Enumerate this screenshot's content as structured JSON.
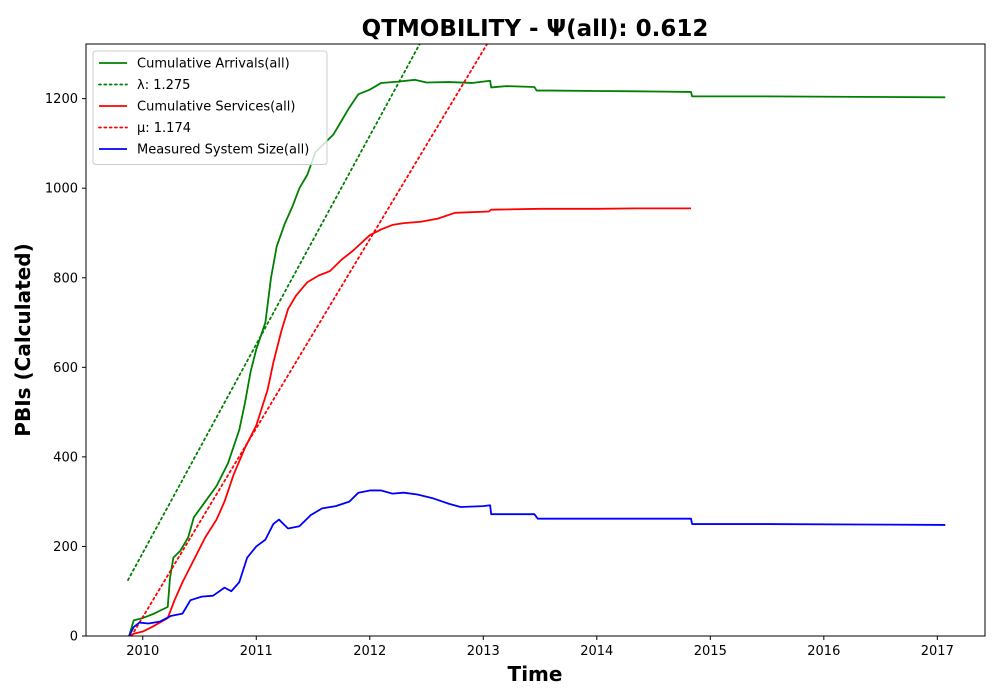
{
  "chart_data": {
    "type": "line",
    "title": "QTMOBILITY -  Ψ(all): 0.612",
    "xlabel": "Time",
    "ylabel": "PBIs (Calculated)",
    "xlim": [
      2009.5,
      2017.42
    ],
    "ylim": [
      0,
      1322
    ],
    "xticks": [
      2010,
      2011,
      2012,
      2013,
      2014,
      2015,
      2016,
      2017
    ],
    "yticks": [
      0,
      200,
      400,
      600,
      800,
      1000,
      1200
    ],
    "legend_position": "top-left",
    "grid": false,
    "series": [
      {
        "name": "Cumulative Arrivals(all)",
        "color": "#008000",
        "style": "solid",
        "points": [
          [
            2009.88,
            0
          ],
          [
            2009.92,
            35
          ],
          [
            2010.0,
            40
          ],
          [
            2010.1,
            50
          ],
          [
            2010.18,
            60
          ],
          [
            2010.22,
            65
          ],
          [
            2010.24,
            130
          ],
          [
            2010.27,
            175
          ],
          [
            2010.33,
            190
          ],
          [
            2010.4,
            220
          ],
          [
            2010.45,
            265
          ],
          [
            2010.55,
            300
          ],
          [
            2010.65,
            335
          ],
          [
            2010.75,
            385
          ],
          [
            2010.85,
            460
          ],
          [
            2010.9,
            520
          ],
          [
            2010.95,
            590
          ],
          [
            2011.0,
            640
          ],
          [
            2011.08,
            700
          ],
          [
            2011.13,
            800
          ],
          [
            2011.18,
            870
          ],
          [
            2011.25,
            920
          ],
          [
            2011.32,
            960
          ],
          [
            2011.38,
            1000
          ],
          [
            2011.45,
            1030
          ],
          [
            2011.52,
            1080
          ],
          [
            2011.6,
            1100
          ],
          [
            2011.68,
            1120
          ],
          [
            2011.75,
            1150
          ],
          [
            2011.82,
            1180
          ],
          [
            2011.9,
            1210
          ],
          [
            2012.0,
            1220
          ],
          [
            2012.1,
            1235
          ],
          [
            2012.25,
            1238
          ],
          [
            2012.4,
            1242
          ],
          [
            2012.5,
            1236
          ],
          [
            2012.7,
            1237
          ],
          [
            2012.9,
            1235
          ],
          [
            2013.06,
            1240
          ],
          [
            2013.07,
            1225
          ],
          [
            2013.2,
            1228
          ],
          [
            2013.45,
            1226
          ],
          [
            2013.47,
            1218
          ],
          [
            2013.6,
            1218
          ],
          [
            2014.0,
            1217
          ],
          [
            2014.5,
            1216
          ],
          [
            2014.83,
            1215
          ],
          [
            2014.84,
            1205
          ],
          [
            2015.5,
            1205
          ],
          [
            2016.3,
            1204
          ],
          [
            2017.07,
            1203
          ]
        ]
      },
      {
        "name": "λ: 1.275",
        "color": "#008000",
        "style": "dotted",
        "points": [
          [
            2009.87,
            125
          ],
          [
            2012.5,
            1350
          ]
        ]
      },
      {
        "name": "Cumulative Services(all)",
        "color": "#ff0000",
        "style": "solid",
        "points": [
          [
            2009.88,
            0
          ],
          [
            2009.92,
            5
          ],
          [
            2010.0,
            10
          ],
          [
            2010.08,
            20
          ],
          [
            2010.15,
            30
          ],
          [
            2010.22,
            40
          ],
          [
            2010.28,
            80
          ],
          [
            2010.35,
            120
          ],
          [
            2010.45,
            170
          ],
          [
            2010.55,
            220
          ],
          [
            2010.65,
            260
          ],
          [
            2010.72,
            300
          ],
          [
            2010.8,
            360
          ],
          [
            2010.9,
            420
          ],
          [
            2011.0,
            470
          ],
          [
            2011.1,
            550
          ],
          [
            2011.15,
            610
          ],
          [
            2011.22,
            680
          ],
          [
            2011.28,
            730
          ],
          [
            2011.35,
            760
          ],
          [
            2011.45,
            790
          ],
          [
            2011.55,
            805
          ],
          [
            2011.65,
            815
          ],
          [
            2011.75,
            840
          ],
          [
            2011.85,
            860
          ],
          [
            2012.0,
            895
          ],
          [
            2012.1,
            908
          ],
          [
            2012.2,
            918
          ],
          [
            2012.3,
            922
          ],
          [
            2012.45,
            925
          ],
          [
            2012.6,
            932
          ],
          [
            2012.75,
            945
          ],
          [
            2013.05,
            948
          ],
          [
            2013.07,
            952
          ],
          [
            2013.5,
            954
          ],
          [
            2014.0,
            954
          ],
          [
            2014.4,
            955
          ],
          [
            2014.83,
            955
          ]
        ]
      },
      {
        "name": "μ: 1.174",
        "color": "#ff0000",
        "style": "dotted",
        "points": [
          [
            2009.9,
            0
          ],
          [
            2013.1,
            1350
          ]
        ]
      },
      {
        "name": "Measured System Size(all)",
        "color": "#0000ff",
        "style": "solid",
        "points": [
          [
            2009.88,
            0
          ],
          [
            2009.92,
            20
          ],
          [
            2009.97,
            30
          ],
          [
            2010.05,
            28
          ],
          [
            2010.15,
            32
          ],
          [
            2010.25,
            45
          ],
          [
            2010.35,
            50
          ],
          [
            2010.42,
            80
          ],
          [
            2010.52,
            88
          ],
          [
            2010.62,
            90
          ],
          [
            2010.72,
            108
          ],
          [
            2010.78,
            100
          ],
          [
            2010.85,
            120
          ],
          [
            2010.92,
            175
          ],
          [
            2011.0,
            200
          ],
          [
            2011.08,
            215
          ],
          [
            2011.15,
            250
          ],
          [
            2011.2,
            260
          ],
          [
            2011.28,
            240
          ],
          [
            2011.38,
            245
          ],
          [
            2011.48,
            270
          ],
          [
            2011.58,
            285
          ],
          [
            2011.7,
            290
          ],
          [
            2011.82,
            300
          ],
          [
            2011.9,
            320
          ],
          [
            2012.0,
            325
          ],
          [
            2012.1,
            325
          ],
          [
            2012.2,
            318
          ],
          [
            2012.3,
            320
          ],
          [
            2012.42,
            316
          ],
          [
            2012.55,
            308
          ],
          [
            2012.7,
            295
          ],
          [
            2012.8,
            288
          ],
          [
            2013.0,
            290
          ],
          [
            2013.06,
            292
          ],
          [
            2013.07,
            272
          ],
          [
            2013.2,
            272
          ],
          [
            2013.45,
            272
          ],
          [
            2013.48,
            262
          ],
          [
            2014.0,
            262
          ],
          [
            2014.83,
            262
          ],
          [
            2014.84,
            250
          ],
          [
            2015.5,
            250
          ],
          [
            2016.3,
            249
          ],
          [
            2017.07,
            248
          ]
        ]
      }
    ]
  }
}
